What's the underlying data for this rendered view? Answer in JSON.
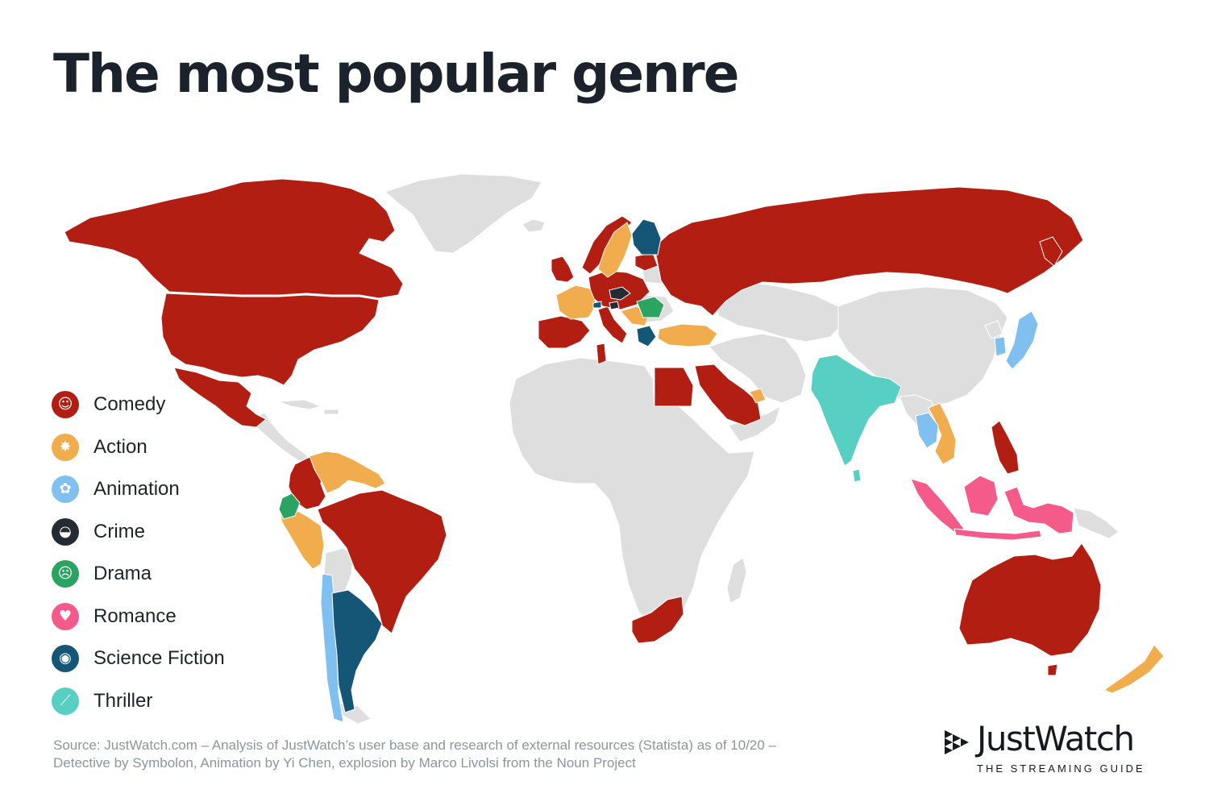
{
  "title": "The most popular genre",
  "colors": {
    "comedy": "#b21e12",
    "action": "#f0ac4d",
    "animation": "#7fc0f0",
    "crime": "#252b33",
    "drama": "#2ba361",
    "romance": "#f45a8a",
    "science_fiction": "#155676",
    "thriller": "#58cfc3",
    "no_data": "#dedede"
  },
  "legend": [
    {
      "label": "Comedy",
      "color": "#b21e12",
      "icon": "comedy-masks-icon",
      "glyph": "☺"
    },
    {
      "label": "Action",
      "color": "#f0ac4d",
      "icon": "explosion-icon",
      "glyph": "✸"
    },
    {
      "label": "Animation",
      "color": "#7fc0f0",
      "icon": "animation-character-icon",
      "glyph": "✿"
    },
    {
      "label": "Crime",
      "color": "#252b33",
      "icon": "detective-icon",
      "glyph": "◒"
    },
    {
      "label": "Drama",
      "color": "#2ba361",
      "icon": "drama-masks-icon",
      "glyph": "☹"
    },
    {
      "label": "Romance",
      "color": "#f45a8a",
      "icon": "heart-icon",
      "glyph": "♥"
    },
    {
      "label": "Science Fiction",
      "color": "#155676",
      "icon": "ufo-icon",
      "glyph": "◉"
    },
    {
      "label": "Thriller",
      "color": "#58cfc3",
      "icon": "knife-icon",
      "glyph": "⟋"
    }
  ],
  "map_data": {
    "Comedy": [
      "United States",
      "Canada",
      "Mexico",
      "Colombia",
      "Brazil",
      "Paraguay",
      "Bolivia",
      "United Kingdom",
      "Ireland",
      "Spain",
      "Portugal",
      "Italy",
      "Germany",
      "Poland",
      "Austria",
      "Hungary",
      "Netherlands",
      "Denmark",
      "Norway",
      "Estonia",
      "Latvia",
      "Lithuania",
      "Russia",
      "Ukraine",
      "Egypt",
      "Saudi Arabia",
      "Jordan",
      "Israel",
      "Lebanon",
      "Kuwait",
      "Bahrain",
      "Qatar",
      "Tunisia",
      "South Africa",
      "Philippines",
      "Australia"
    ],
    "Action": [
      "Venezuela",
      "Guyana",
      "Suriname",
      "French Guiana",
      "Peru",
      "France",
      "Belgium",
      "Switzerland",
      "Sweden",
      "Slovakia",
      "Croatia",
      "Serbia",
      "Bulgaria",
      "Turkey",
      "United Arab Emirates",
      "Vietnam",
      "Cambodia",
      "New Zealand"
    ],
    "Animation": [
      "Chile",
      "Japan",
      "South Korea",
      "Thailand"
    ],
    "Crime": [
      "Czech Republic",
      "Slovenia"
    ],
    "Drama": [
      "Ecuador",
      "Romania"
    ],
    "Romance": [
      "Indonesia",
      "Malaysia",
      "Papua New Guinea"
    ],
    "Science Fiction": [
      "Argentina",
      "Uruguay",
      "Finland",
      "Greece",
      "Liechtenstein"
    ],
    "Thriller": [
      "India",
      "Bangladesh",
      "Sri Lanka"
    ]
  },
  "source": "Source: JustWatch.com – Analysis of JustWatch’s user base and research of external resources (Statista) as of 10/20 – Detective by Symbolon, Animation by Yi Chen,  explosion by Marco Livolsi from the Noun Project",
  "brand": {
    "name": "JustWatch",
    "tagline": "THE STREAMING GUIDE"
  }
}
